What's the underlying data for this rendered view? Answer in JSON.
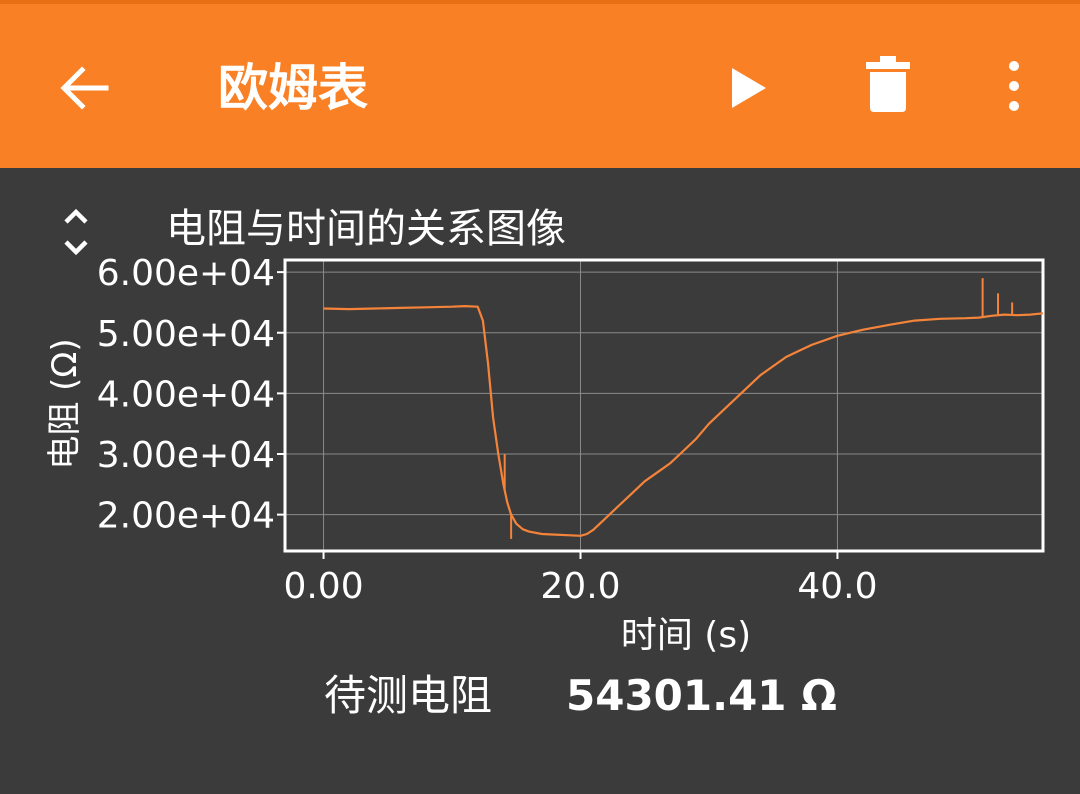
{
  "appbar": {
    "title": "欧姆表",
    "back_icon": "arrow-left-icon",
    "play_icon": "play-icon",
    "delete_icon": "trash-icon",
    "menu_icon": "more-vertical-icon"
  },
  "panel": {
    "expand_icon": "unfold-icon",
    "chart_title": "电阻与时间的关系图像"
  },
  "colors": {
    "appbar": "#f98025",
    "background": "#3b3b3b",
    "series": "#f5843a",
    "grid": "#8a8a8a",
    "frame": "#ffffff"
  },
  "chart_data": {
    "type": "line",
    "title": "电阻与时间的关系图像",
    "xlabel": "时间 (s)",
    "ylabel": "电阻 (Ω)",
    "xlim": [
      -3,
      56
    ],
    "ylim": [
      14000,
      62000
    ],
    "xticks": [
      0,
      20,
      40
    ],
    "xtick_labels": [
      "0.00",
      "20.0",
      "40.0"
    ],
    "yticks": [
      20000,
      30000,
      40000,
      50000,
      60000
    ],
    "ytick_labels": [
      "2.00e+04",
      "3.00e+04",
      "4.00e+04",
      "5.00e+04",
      "6.00e+04"
    ],
    "grid": true,
    "series": [
      {
        "x": [
          0,
          2,
          4,
          6,
          8,
          10,
          11,
          12,
          12.4,
          12.8,
          13.2,
          13.6,
          14.0,
          14.3,
          14.6,
          15.0,
          15.5,
          16,
          17,
          18,
          19,
          20,
          20.5,
          21,
          22,
          23,
          24,
          25,
          26,
          27,
          28,
          29,
          30,
          31,
          32,
          33,
          34,
          35,
          36,
          37,
          38,
          40,
          42,
          44,
          46,
          48,
          50,
          51,
          52,
          53,
          54,
          55,
          56
        ],
        "y": [
          54000,
          53900,
          54000,
          54100,
          54200,
          54300,
          54400,
          54300,
          52000,
          45000,
          36000,
          30000,
          25000,
          22000,
          20000,
          18500,
          17600,
          17200,
          16800,
          16700,
          16600,
          16500,
          16800,
          17500,
          19500,
          21500,
          23500,
          25500,
          27000,
          28500,
          30500,
          32500,
          35000,
          37000,
          39000,
          41000,
          43000,
          44500,
          46000,
          47000,
          48000,
          49500,
          50500,
          51300,
          52000,
          52300,
          52400,
          52500,
          52800,
          53000,
          52900,
          53000,
          53200
        ]
      }
    ],
    "spikes": [
      {
        "x": 14.1,
        "y": 30000
      },
      {
        "x": 14.6,
        "y": 16000
      },
      {
        "x": 51.3,
        "y": 59000
      },
      {
        "x": 52.5,
        "y": 56500
      },
      {
        "x": 53.6,
        "y": 55000
      }
    ]
  },
  "footer": {
    "label": "待测电阻",
    "value": "54301.41 Ω"
  }
}
